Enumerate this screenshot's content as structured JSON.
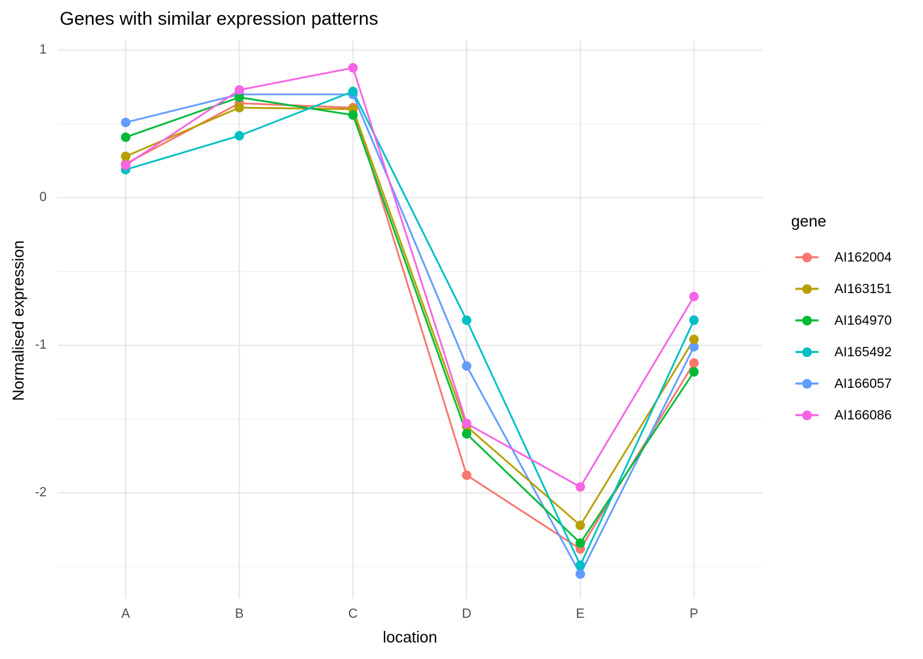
{
  "title": "Genes with similar expression patterns",
  "chart_data": {
    "type": "line",
    "title": "Genes with similar expression patterns",
    "xlabel": "location",
    "ylabel": "Normalised expression",
    "categories": [
      "A",
      "B",
      "C",
      "D",
      "E",
      "P"
    ],
    "series": [
      {
        "name": "AI162004",
        "color": "#F8766D",
        "values": [
          0.23,
          0.64,
          0.61,
          -1.88,
          -2.38,
          -1.12
        ]
      },
      {
        "name": "AI163151",
        "color": "#B79F00",
        "values": [
          0.28,
          0.61,
          0.6,
          -1.55,
          -2.22,
          -0.96
        ]
      },
      {
        "name": "AI164970",
        "color": "#00BA38",
        "values": [
          0.41,
          0.68,
          0.56,
          -1.6,
          -2.34,
          -1.18
        ]
      },
      {
        "name": "AI165492",
        "color": "#00BFC4",
        "values": [
          0.19,
          0.42,
          0.72,
          -0.83,
          -2.49,
          -0.83
        ]
      },
      {
        "name": "AI166057",
        "color": "#619CFF",
        "values": [
          0.51,
          0.7,
          0.7,
          -1.14,
          -2.55,
          -1.01
        ]
      },
      {
        "name": "AI166086",
        "color": "#F564E3",
        "values": [
          0.22,
          0.73,
          0.88,
          -1.53,
          -1.96,
          -0.67
        ]
      }
    ],
    "legend": {
      "title": "gene",
      "position": "right"
    },
    "y_axis": {
      "ticks": [
        1,
        0,
        -1,
        -2
      ],
      "tick_labels": [
        "1",
        "0",
        "-1",
        "-2"
      ],
      "minor_ticks": [
        0.5,
        -0.5,
        -1.5,
        -2.5
      ],
      "ylim": [
        -2.72,
        1.07
      ]
    },
    "grid": "on",
    "draw_order": [
      "AI162004",
      "AI166057",
      "AI163151",
      "AI164970",
      "AI165492",
      "AI166086"
    ]
  },
  "colors": {
    "background": "#ffffff",
    "grid_major": "#e3e3e3",
    "grid_minor": "#efefef",
    "axis_text": "#4d4d4d",
    "title_text": "#000000"
  }
}
